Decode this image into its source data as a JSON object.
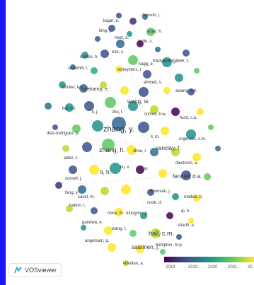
{
  "app": {
    "name": "VOSviewer"
  },
  "legend": {
    "years": [
      "2018",
      "2019",
      "2020",
      "2021",
      "20"
    ]
  },
  "labels": [
    "kajan, e.",
    "dawson, j.",
    "king, j.",
    "azad, h.",
    "neet, a.",
    "aydin, c.",
    "eze, c.",
    "dahles, h.",
    "musavengane, r.",
    "stonehill, t.",
    "scheyvens, r.",
    "kagg, e.",
    "bricker, k.s.",
    "seekamp, e.",
    "ahmed, s.",
    "awang, a.h.",
    "wang, w.",
    "bui, h.t.",
    "li, j.",
    "zhu, l.",
    "stichel, b.w.",
    "hunt, c.a.",
    "zhang, y.",
    "diaz-rodriguez, p.",
    "li, m.",
    "rogerson, c.m.",
    "zhang, h.",
    "vanclay, f.",
    "adler, c.",
    "zhou, r.",
    "dieckson, a.",
    "liu, x.",
    "li, w.",
    "fennell, d.a.",
    "cornell, j.",
    "li, h.",
    "fang, y.",
    "donovan, j.",
    "mallick, b.",
    "savel, m.",
    "cook, d.",
    "hatton, t.",
    "qi, h.",
    "nova, m.",
    "musgoto, g.",
    "gandwa, e.",
    "wang, l.",
    "hall, c.m.",
    "sharifi, a.",
    "angelsam, p.",
    "saarinen, j.",
    "hampton, m.p.",
    "vinodan, a."
  ]
}
